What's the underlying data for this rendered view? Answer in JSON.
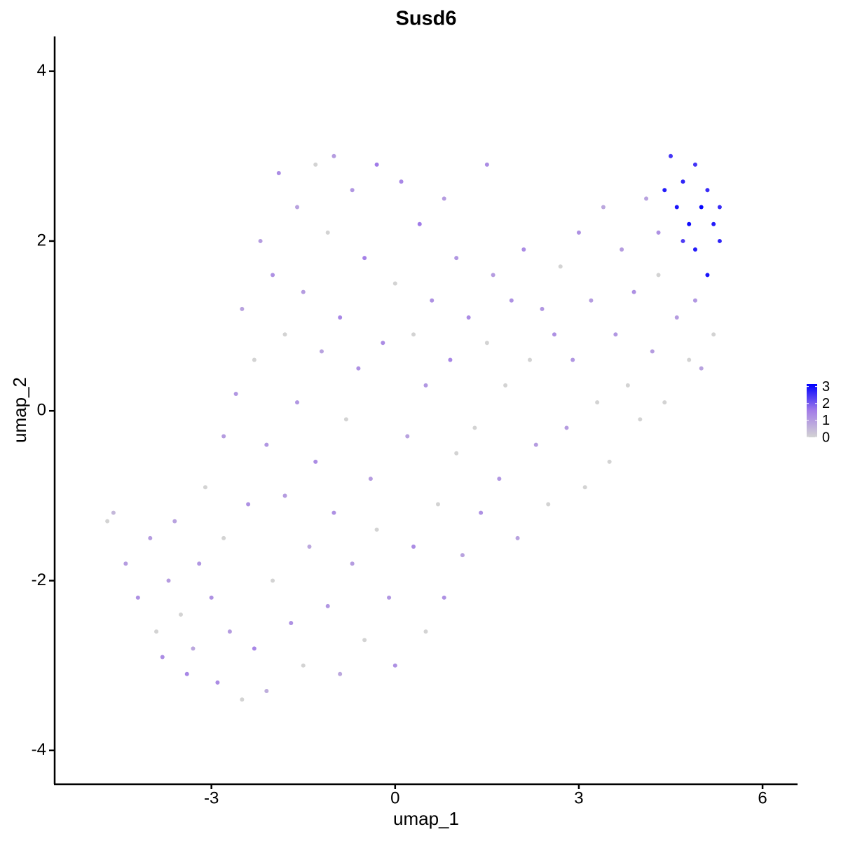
{
  "chart_data": {
    "type": "scatter",
    "title": "Susd6",
    "xlabel": "umap_1",
    "ylabel": "umap_2",
    "xlim": [
      -5.56,
      6.56
    ],
    "xticks": [
      -3,
      0,
      3,
      6
    ],
    "ylim": [
      -4.39,
      4.41
    ],
    "yticks": [
      -4,
      -2,
      0,
      2,
      4
    ],
    "colorbar": {
      "lim": [
        0,
        3.15
      ],
      "ticks": [
        0,
        1,
        2,
        3
      ],
      "colors": [
        "#d3d3d3",
        "#a37de8",
        "#0000ff"
      ]
    },
    "x": [
      -4.7,
      -4.6,
      -4.4,
      -4.2,
      -4.0,
      -3.9,
      -3.8,
      -3.7,
      -3.6,
      -3.5,
      -3.4,
      -3.3,
      -3.2,
      -3.1,
      -3.0,
      -2.9,
      -2.8,
      -2.8,
      -2.7,
      -2.6,
      -2.5,
      -2.5,
      -2.4,
      -2.3,
      -2.3,
      -2.2,
      -2.1,
      -2.1,
      -2.0,
      -2.0,
      -1.9,
      -1.8,
      -1.8,
      -1.7,
      -1.6,
      -1.6,
      -1.5,
      -1.5,
      -1.4,
      -1.3,
      -1.3,
      -1.2,
      -1.1,
      -1.1,
      -1.0,
      -1.0,
      -0.9,
      -0.9,
      -0.8,
      -0.7,
      -0.7,
      -0.6,
      -0.5,
      -0.5,
      -0.4,
      -0.3,
      -0.3,
      -0.2,
      -0.1,
      0.0,
      0.0,
      0.1,
      0.2,
      0.3,
      0.3,
      0.4,
      0.5,
      0.5,
      0.6,
      0.7,
      0.8,
      0.8,
      0.9,
      1.0,
      1.0,
      1.1,
      1.2,
      1.3,
      1.4,
      1.5,
      1.5,
      1.6,
      1.7,
      1.8,
      1.9,
      2.0,
      2.1,
      2.2,
      2.3,
      2.4,
      2.5,
      2.6,
      2.7,
      2.8,
      2.9,
      3.0,
      3.1,
      3.2,
      3.3,
      3.4,
      3.5,
      3.6,
      3.7,
      3.8,
      3.9,
      4.0,
      4.1,
      4.2,
      4.3,
      4.4,
      4.4,
      4.5,
      4.6,
      4.7,
      4.8,
      4.9,
      5.0,
      5.1,
      5.2,
      5.3,
      4.6,
      4.8,
      4.9,
      5.0,
      5.2,
      5.3,
      4.7,
      5.1,
      4.3,
      4.9
    ],
    "values": [
      -1.3,
      -1.2,
      -1.8,
      -2.2,
      -1.5,
      -2.6,
      -2.9,
      -2.0,
      -1.3,
      -2.4,
      -3.1,
      -2.8,
      -1.8,
      -0.9,
      -2.2,
      -3.2,
      -0.3,
      -1.5,
      -2.6,
      0.2,
      -3.4,
      1.2,
      -1.1,
      -2.8,
      0.6,
      2.0,
      -0.4,
      -3.3,
      1.6,
      -2.0,
      2.8,
      -1.0,
      0.9,
      -2.5,
      2.4,
      0.1,
      -3.0,
      1.4,
      -1.6,
      2.9,
      -0.6,
      0.7,
      -2.3,
      2.1,
      -1.2,
      3.0,
      -3.1,
      1.1,
      -0.1,
      2.6,
      -1.8,
      0.5,
      -2.7,
      1.8,
      -0.8,
      2.9,
      -1.4,
      0.8,
      -2.2,
      1.5,
      -3.0,
      2.7,
      -0.3,
      -1.6,
      0.9,
      2.2,
      -2.6,
      0.3,
      1.3,
      -1.1,
      2.5,
      -2.2,
      0.6,
      -0.5,
      1.8,
      -1.7,
      1.1,
      -0.2,
      -1.2,
      2.9,
      0.8,
      1.6,
      -0.8,
      0.3,
      1.3,
      -1.5,
      1.9,
      0.6,
      -0.4,
      1.2,
      -1.1,
      0.9,
      1.7,
      -0.2,
      0.6,
      2.1,
      -0.9,
      1.3,
      0.1,
      2.4,
      -0.6,
      0.9,
      1.9,
      0.3,
      1.4,
      -0.1,
      2.5,
      0.7,
      1.6,
      0.1,
      2.6,
      3.0,
      2.4,
      2.7,
      2.2,
      1.9,
      2.4,
      1.6,
      2.2,
      2.0,
      1.1,
      0.6,
      1.3,
      0.5,
      0.9,
      2.4,
      2.0,
      2.6,
      2.1,
      2.9
    ],
    "expression": [
      0,
      0.5,
      1,
      1.2,
      1,
      0,
      1.3,
      1,
      0.9,
      0,
      1.4,
      0.8,
      1.1,
      0,
      1.2,
      1.3,
      1,
      0,
      1,
      1.1,
      0,
      0.9,
      1.2,
      1.4,
      0,
      1,
      1.1,
      0.7,
      1.2,
      0,
      1.3,
      1,
      0,
      1.2,
      0.9,
      1.1,
      0,
      1,
      0.8,
      0,
      1.3,
      0.9,
      1.1,
      0,
      1.2,
      1,
      0.8,
      1.4,
      0,
      1.1,
      1,
      1.2,
      0,
      1.5,
      1,
      1.6,
      0,
      1.3,
      1.1,
      0,
      1.2,
      1.4,
      0.9,
      1.3,
      0,
      1.6,
      0,
      1.1,
      1.2,
      0,
      1,
      1.2,
      1.4,
      0,
      1.1,
      0.9,
      1.3,
      0,
      1.2,
      1.3,
      0,
      1,
      1.1,
      0,
      1.2,
      0.9,
      1.3,
      0,
      1,
      1.1,
      0,
      1.2,
      0,
      1,
      1.1,
      1.2,
      0,
      1,
      0,
      0.8,
      0,
      1.1,
      1,
      0,
      1.2,
      0,
      0.9,
      1,
      0,
      0,
      2.8,
      2.5,
      2.9,
      2.7,
      3.0,
      2.8,
      3.1,
      2.9,
      2.8,
      2.7,
      1,
      0,
      1.1,
      0.9,
      0,
      2.6,
      2.4,
      2.6,
      1.2,
      2.5
    ]
  }
}
